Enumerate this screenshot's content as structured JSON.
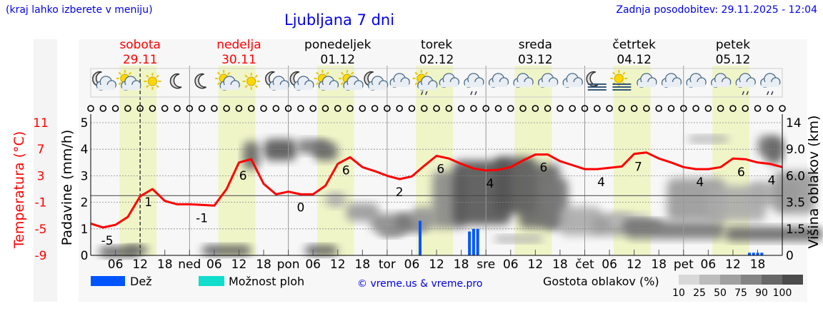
{
  "header": {
    "hint": "(kraj lahko izberete v meniju)",
    "title": "Ljubljana 7 dni",
    "updated": "Zadnja posodobitev: 29.11.2025 - 12:04"
  },
  "days": [
    {
      "name": "sobota",
      "date": "29.11",
      "weekend": true
    },
    {
      "name": "nedelja",
      "date": "30.11",
      "weekend": true
    },
    {
      "name": "ponedeljek",
      "date": "01.12",
      "weekend": false
    },
    {
      "name": "torek",
      "date": "02.12",
      "weekend": false
    },
    {
      "name": "sreda",
      "date": "03.12",
      "weekend": false
    },
    {
      "name": "četrtek",
      "date": "04.12",
      "weekend": false
    },
    {
      "name": "petek",
      "date": "05.12",
      "weekend": false
    }
  ],
  "weather_icons": [
    [
      "moon-cloud-icon",
      "sun-cloud-icon",
      "sun-icon",
      "moon-icon"
    ],
    [
      "moon-icon",
      "sun-cloud-icon",
      "sun-icon",
      "moon-cloud-icon"
    ],
    [
      "moon-cloud-icon",
      "sun-cloud-icon",
      "sun-cloud-icon",
      "moon-cloud-icon"
    ],
    [
      "cloud-icon",
      "sun-cloud-drizzle-icon",
      "cloud-icon",
      "cloud-drizzle-icon"
    ],
    [
      "cloud-icon",
      "cloud-icon",
      "cloud-icon",
      "cloud-icon"
    ],
    [
      "moon-fog-icon",
      "sun-fog-icon",
      "cloud-icon",
      "cloud-icon"
    ],
    [
      "cloud-icon",
      "cloud-icon",
      "cloud-drizzle-icon",
      "cloud-drizzle-icon"
    ]
  ],
  "legend": {
    "rain": "Dež",
    "showers": "Možnost ploh",
    "copyright": "© vreme.us & vreme.pro",
    "cloud_density": "Gostota oblakov (%)",
    "density_steps": [
      "10",
      "25",
      "50",
      "75",
      "90",
      "100"
    ],
    "density_colors": [
      "#d8d8d8",
      "#bcbcbc",
      "#a0a0a0",
      "#848484",
      "#686868",
      "#4c4c4c"
    ]
  },
  "colors": {
    "temperature": "#ff0000",
    "rain": "#0055ff",
    "showers": "#11ddcc",
    "daylight": "#f0f5c8",
    "plot_bg": "#f7f7f7"
  },
  "chart_data": {
    "type": "line",
    "x_tick_labels": [
      "",
      "06",
      "12",
      "18",
      "ned",
      "06",
      "12",
      "18",
      "pon",
      "06",
      "12",
      "18",
      "tor",
      "06",
      "12",
      "18",
      "sre",
      "06",
      "12",
      "18",
      "čet",
      "06",
      "12",
      "18",
      "pet",
      "06",
      "12",
      "18"
    ],
    "left_axis_temp": {
      "label": "Temperatura (°C)",
      "ticks": [
        "11",
        "7",
        "3",
        "-1",
        "-5",
        "-9"
      ],
      "range": [
        -9,
        11
      ]
    },
    "left_axis_precip": {
      "label": "Padavine (mm/h)",
      "ticks": [
        "5",
        "4",
        "3",
        "2",
        "1",
        "0"
      ],
      "range": [
        0,
        5
      ]
    },
    "right_axis_cloud": {
      "label": "Višina oblakov (km)",
      "ticks": [
        "14",
        "9.0",
        "6.0",
        "3.5",
        "1.5",
        "0"
      ]
    },
    "temperature": {
      "start": "29.11 00:00",
      "interval_hours": 3,
      "values": [
        -4.2,
        -4.8,
        -4.4,
        -3.2,
        -0.1,
        1.0,
        -0.8,
        -1.3,
        -1.3,
        -1.4,
        -1.5,
        1.0,
        5.0,
        5.5,
        1.8,
        0.2,
        0.6,
        0.2,
        0.2,
        1.5,
        4.8,
        5.8,
        4.3,
        3.7,
        3.0,
        2.5,
        2.9,
        4.5,
        6.0,
        5.6,
        4.8,
        4.1,
        3.8,
        3.9,
        4.3,
        5.3,
        6.2,
        6.2,
        5.2,
        4.6,
        4.0,
        4.0,
        4.2,
        4.4,
        6.3,
        6.5,
        5.6,
        5.0,
        4.3,
        4.0,
        4.0,
        4.3,
        5.6,
        5.5,
        5.0,
        4.8,
        4.3
      ]
    },
    "temperature_labels": [
      {
        "time": "29.11 04:00",
        "text": "-5"
      },
      {
        "time": "29.11 14:00",
        "text": "1"
      },
      {
        "time": "30.11 03:00",
        "text": "-1"
      },
      {
        "time": "30.11 13:00",
        "text": "6"
      },
      {
        "time": "01.12 03:00",
        "text": "0"
      },
      {
        "time": "01.12 14:00",
        "text": "6"
      },
      {
        "time": "02.12 03:00",
        "text": "2"
      },
      {
        "time": "02.12 13:00",
        "text": "6"
      },
      {
        "time": "03.12 01:00",
        "text": "4"
      },
      {
        "time": "03.12 14:00",
        "text": "6"
      },
      {
        "time": "04.12 04:00",
        "text": "4"
      },
      {
        "time": "04.12 13:00",
        "text": "7"
      },
      {
        "time": "05.12 04:00",
        "text": "4"
      },
      {
        "time": "05.12 14:00",
        "text": "6"
      },
      {
        "time": "06.12 00:00",
        "text": "4"
      }
    ],
    "precipitation": [
      {
        "time": "02.12 08:00",
        "mm": 1.3
      },
      {
        "time": "02.12 20:00",
        "mm": 0.9
      },
      {
        "time": "02.12 21:00",
        "mm": 1.0
      },
      {
        "time": "02.12 22:00",
        "mm": 1.0
      },
      {
        "time": "05.12 16:00",
        "mm": 0.1
      },
      {
        "time": "05.12 17:00",
        "mm": 0.1
      },
      {
        "time": "05.12 18:00",
        "mm": 0.1
      },
      {
        "time": "05.12 19:00",
        "mm": 0.1
      }
    ],
    "now": "29.11 12:00",
    "grid": true
  }
}
